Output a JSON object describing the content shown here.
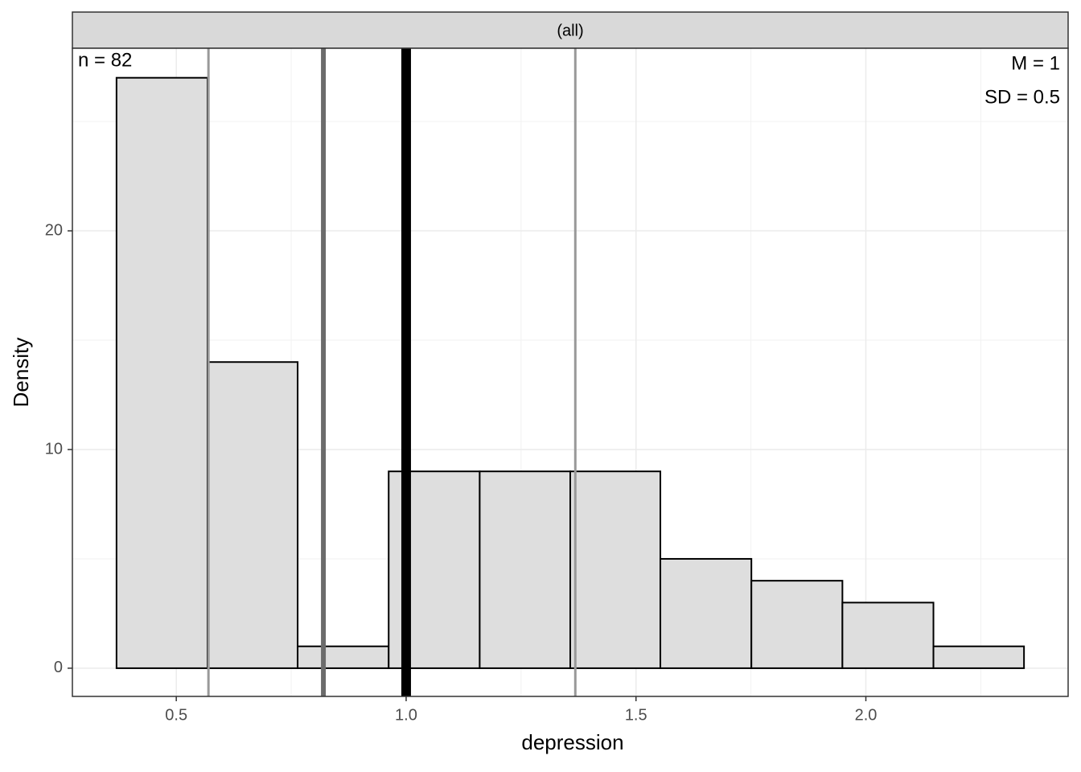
{
  "chart_data": {
    "type": "histogram",
    "strip": "(all)",
    "xlabel": "depression",
    "ylabel": "Density",
    "annotations": {
      "n": "n = 82",
      "mean": "M = 1",
      "sd": "SD = 0.5"
    },
    "bins": [
      0.37,
      0.568,
      0.764,
      0.962,
      1.16,
      1.357,
      1.553,
      1.751,
      1.949,
      2.147,
      2.344
    ],
    "values": [
      27,
      14,
      1,
      9,
      9,
      9,
      5,
      4,
      3,
      1
    ],
    "color": "#dedede",
    "vlines": [
      {
        "x": 0.57,
        "color": "#999999"
      },
      {
        "x": 0.82,
        "color": "#6b6b6b"
      },
      {
        "x": 1.0,
        "color": "#000000"
      },
      {
        "x": 1.368,
        "color": "#999999"
      }
    ],
    "xlim": [
      0.274,
      2.44
    ],
    "ylim": [
      -1.29,
      28.35
    ],
    "xticks": [
      {
        "value": 0.5,
        "label": "0.5"
      },
      {
        "value": 1.0,
        "label": "1.0"
      },
      {
        "value": 1.5,
        "label": "1.5"
      },
      {
        "value": 2.0,
        "label": "2.0"
      }
    ],
    "yticks": [
      0,
      10,
      20
    ],
    "xminor": [
      0.75,
      1.25,
      1.75,
      2.25
    ],
    "yminor": [
      5,
      15,
      25
    ],
    "grid": true
  }
}
